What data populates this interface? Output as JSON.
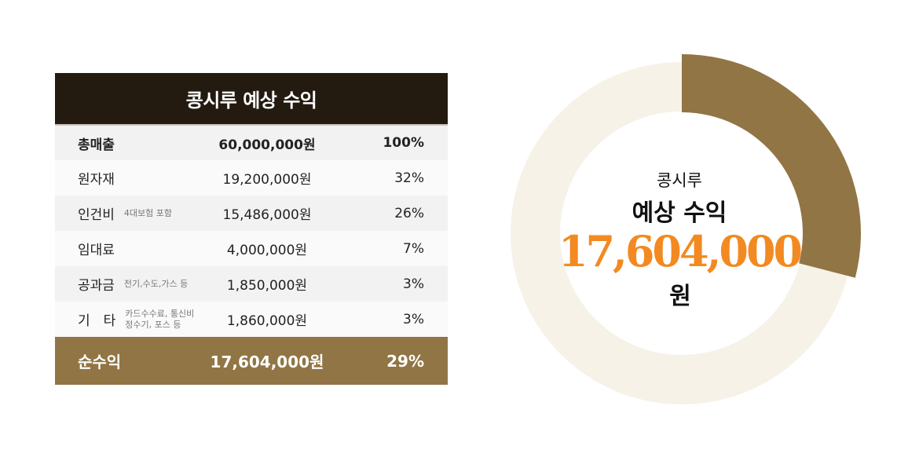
{
  "table": {
    "title": "콩시루 예상 수익",
    "rows": [
      {
        "name": "총매출",
        "note1": "",
        "note2": "",
        "amount": "60,000,000원",
        "percent": "100%"
      },
      {
        "name": "원자재",
        "note1": "",
        "note2": "",
        "amount": "19,200,000원",
        "percent": "32%"
      },
      {
        "name": "인건비",
        "note1": "4대보험 포함",
        "note2": "",
        "amount": "15,486,000원",
        "percent": "26%"
      },
      {
        "name": "임대료",
        "note1": "",
        "note2": "",
        "amount": "4,000,000원",
        "percent": "7%"
      },
      {
        "name": "공과금",
        "note1": "전기,수도,가스 등",
        "note2": "",
        "amount": "1,850,000원",
        "percent": "3%"
      },
      {
        "name": "기　타",
        "note1": "카드수수료, 통신비",
        "note2": "정수기, 포스 등",
        "amount": "1,860,000원",
        "percent": "3%"
      }
    ],
    "total": {
      "name": "순수익",
      "amount": "17,604,000원",
      "percent": "29%"
    }
  },
  "center": {
    "line1": "콩시루",
    "line2": "예상 수익",
    "amount": "17,604,000",
    "unit": "원"
  },
  "chart_data": {
    "type": "pie",
    "categories": [
      "순수익",
      "기타"
    ],
    "values": [
      29,
      71
    ],
    "colors": [
      "#917545",
      "#f6f2e8"
    ]
  }
}
